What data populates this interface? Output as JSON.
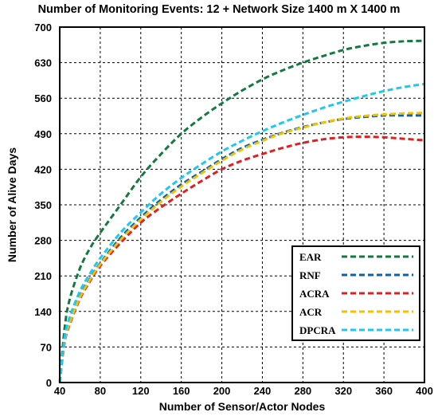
{
  "chart_data": {
    "type": "line",
    "title": "Number of Monitoring Events: 12 + Network Size 1400 m X 1400 m",
    "xlabel": "Number of Sensor/Actor Nodes",
    "ylabel": "Number of Alive Days",
    "xlim": [
      40,
      400
    ],
    "ylim": [
      0,
      700
    ],
    "xticks": [
      40,
      80,
      120,
      160,
      200,
      240,
      280,
      320,
      360,
      400
    ],
    "yticks": [
      0,
      70,
      140,
      210,
      280,
      350,
      420,
      490,
      560,
      630,
      700
    ],
    "grid": true,
    "legend_position": "bottom-right",
    "x": [
      40,
      45,
      50,
      60,
      70,
      80,
      100,
      120,
      140,
      160,
      180,
      200,
      220,
      240,
      260,
      280,
      300,
      320,
      340,
      360,
      380,
      400
    ],
    "series": [
      {
        "name": "EAR",
        "color": "#127A3E",
        "values": [
          0,
          110,
          165,
          225,
          265,
          295,
          350,
          405,
          450,
          490,
          522,
          550,
          575,
          597,
          615,
          630,
          643,
          655,
          663,
          669,
          672,
          673
        ]
      },
      {
        "name": "RNF",
        "color": "#1060A8",
        "values": [
          0,
          85,
          120,
          170,
          205,
          235,
          285,
          325,
          360,
          390,
          415,
          440,
          462,
          478,
          492,
          503,
          512,
          519,
          523,
          526,
          526,
          526
        ]
      },
      {
        "name": "ACRA",
        "color": "#E02020",
        "values": [
          0,
          80,
          115,
          165,
          200,
          230,
          275,
          315,
          345,
          372,
          397,
          420,
          437,
          450,
          462,
          472,
          479,
          483,
          484,
          483,
          480,
          477
        ]
      },
      {
        "name": "ACR",
        "color": "#F2C200",
        "values": [
          0,
          83,
          118,
          168,
          203,
          233,
          281,
          321,
          356,
          386,
          412,
          437,
          459,
          476,
          491,
          502,
          512,
          520,
          525,
          528,
          530,
          531
        ]
      },
      {
        "name": "DPCRA",
        "color": "#1EC8F0",
        "values": [
          0,
          90,
          130,
          180,
          215,
          245,
          295,
          335,
          372,
          403,
          430,
          455,
          476,
          495,
          512,
          527,
          541,
          553,
          564,
          574,
          582,
          588
        ]
      }
    ]
  }
}
